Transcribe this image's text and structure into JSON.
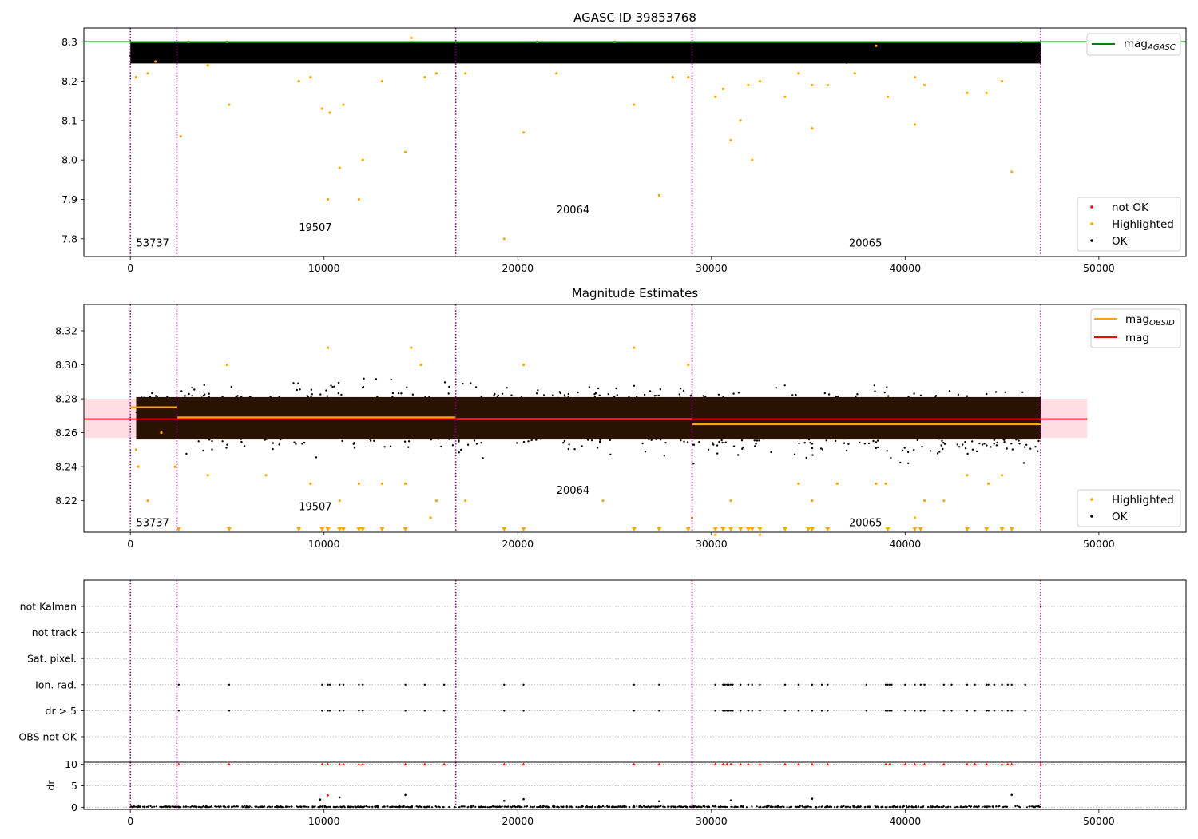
{
  "chart_data": [
    {
      "type": "scatter",
      "title": "AGASC ID 39853768",
      "xlim": [
        -2400,
        54500
      ],
      "ylim": [
        7.755,
        8.335
      ],
      "xticks": [
        0,
        10000,
        20000,
        30000,
        40000,
        50000
      ],
      "yticks": [
        7.8,
        7.9,
        8.0,
        8.1,
        8.2,
        8.3
      ],
      "ytick_labels": [
        "7.8",
        "7.9",
        "8.0",
        "8.1",
        "8.2",
        "8.3"
      ],
      "band": {
        "low": 8.245,
        "high": 8.298
      },
      "ok_trend": [
        {
          "x": 0,
          "y": 8.277
        },
        {
          "x": 2400,
          "y": 8.277
        },
        {
          "x": 2400,
          "y": 8.27
        },
        {
          "x": 16800,
          "y": 8.271
        },
        {
          "x": 16800,
          "y": 8.263
        },
        {
          "x": 29000,
          "y": 8.268
        },
        {
          "x": 29000,
          "y": 8.263
        },
        {
          "x": 47000,
          "y": 8.265
        }
      ],
      "mag_agasc": 8.3,
      "obsid_boundaries": [
        0,
        2400,
        16800,
        29000,
        47000
      ],
      "obsid_labels": [
        {
          "text": "53737",
          "x": 300,
          "y": 7.78
        },
        {
          "text": "19507",
          "x": 8700,
          "y": 7.82
        },
        {
          "text": "20064",
          "x": 22000,
          "y": 7.865
        },
        {
          "text": "20065",
          "x": 37100,
          "y": 7.78
        }
      ],
      "series": [
        {
          "name": "not OK",
          "color": "#ff0000",
          "points": []
        },
        {
          "name": "Highlighted",
          "color": "#ffa500",
          "points": [
            [
              300,
              8.21
            ],
            [
              900,
              8.22
            ],
            [
              1300,
              8.25
            ],
            [
              2600,
              8.06
            ],
            [
              3000,
              8.3
            ],
            [
              4000,
              8.24
            ],
            [
              5000,
              8.3
            ],
            [
              5100,
              8.14
            ],
            [
              8700,
              8.2
            ],
            [
              9300,
              8.21
            ],
            [
              9900,
              8.13
            ],
            [
              10200,
              7.9
            ],
            [
              10300,
              8.12
            ],
            [
              10800,
              7.98
            ],
            [
              11000,
              8.14
            ],
            [
              11800,
              7.9
            ],
            [
              12000,
              8.0
            ],
            [
              13000,
              8.2
            ],
            [
              14200,
              8.02
            ],
            [
              14500,
              8.31
            ],
            [
              15200,
              8.21
            ],
            [
              15800,
              8.22
            ],
            [
              17300,
              8.22
            ],
            [
              19300,
              7.8
            ],
            [
              20300,
              8.07
            ],
            [
              21000,
              8.3
            ],
            [
              22000,
              8.22
            ],
            [
              25000,
              8.3
            ],
            [
              26000,
              8.14
            ],
            [
              27300,
              7.91
            ],
            [
              28000,
              8.21
            ],
            [
              28800,
              8.21
            ],
            [
              30200,
              8.16
            ],
            [
              30600,
              8.18
            ],
            [
              31000,
              8.05
            ],
            [
              31500,
              8.1
            ],
            [
              31900,
              8.19
            ],
            [
              32100,
              8.0
            ],
            [
              32500,
              8.2
            ],
            [
              33800,
              8.16
            ],
            [
              34500,
              8.22
            ],
            [
              35200,
              8.08
            ],
            [
              35200,
              8.19
            ],
            [
              36000,
              8.19
            ],
            [
              37400,
              8.22
            ],
            [
              38500,
              8.29
            ],
            [
              39100,
              8.16
            ],
            [
              40500,
              8.09
            ],
            [
              40500,
              8.21
            ],
            [
              41000,
              8.19
            ],
            [
              43200,
              8.17
            ],
            [
              44200,
              8.17
            ],
            [
              45000,
              8.2
            ],
            [
              45500,
              7.97
            ],
            [
              46000,
              8.3
            ]
          ]
        },
        {
          "name": "OK",
          "color": "#000000",
          "points": []
        }
      ],
      "legend_lines": [
        {
          "name": "mag",
          "sub": "AGASC",
          "color": "#008000"
        }
      ],
      "legend_points": [
        {
          "name": "not OK",
          "color": "#ff0000"
        },
        {
          "name": "Highlighted",
          "color": "#ffa500"
        },
        {
          "name": "OK",
          "color": "#000000"
        }
      ]
    },
    {
      "type": "scatter",
      "title": "Magnitude Estimates",
      "xlim": [
        -2400,
        54500
      ],
      "ylim": [
        8.2015,
        8.3355
      ],
      "xticks": [
        0,
        10000,
        20000,
        30000,
        40000,
        50000
      ],
      "yticks": [
        8.22,
        8.24,
        8.26,
        8.28,
        8.3,
        8.32
      ],
      "ytick_labels": [
        "8.22",
        "8.24",
        "8.26",
        "8.28",
        "8.30",
        "8.32"
      ],
      "band": {
        "low": 8.236,
        "high": 8.3
      },
      "dense_band": {
        "low": 8.256,
        "high": 8.281
      },
      "mag": 8.268,
      "mag_err": [
        8.257,
        8.28
      ],
      "mag_err_x": [
        -2400,
        49400
      ],
      "mag_obsid": [
        {
          "x0": 0,
          "x1": 2400,
          "y": 8.275
        },
        {
          "x0": 2400,
          "x1": 16800,
          "y": 8.269
        },
        {
          "x0": 16800,
          "x1": 29000,
          "y": 8.268
        },
        {
          "x0": 29000,
          "x1": 47000,
          "y": 8.265
        }
      ],
      "obsid_boundaries": [
        0,
        2400,
        16800,
        29000,
        47000
      ],
      "obsid_labels": [
        {
          "text": "53737",
          "x": 300,
          "y": 8.205
        },
        {
          "text": "19507",
          "x": 8700,
          "y": 8.2145
        },
        {
          "text": "20064",
          "x": 22000,
          "y": 8.224
        },
        {
          "text": "20065",
          "x": 37100,
          "y": 8.205
        }
      ],
      "series": [
        {
          "name": "Highlighted",
          "color": "#ffa500",
          "points": [
            [
              300,
              8.25
            ],
            [
              400,
              8.24
            ],
            [
              900,
              8.22
            ],
            [
              1600,
              8.26
            ],
            [
              2300,
              8.24
            ],
            [
              4000,
              8.235
            ],
            [
              5000,
              8.3
            ],
            [
              7000,
              8.235
            ],
            [
              9300,
              8.23
            ],
            [
              10200,
              8.31
            ],
            [
              10800,
              8.22
            ],
            [
              11800,
              8.23
            ],
            [
              13000,
              8.23
            ],
            [
              14200,
              8.23
            ],
            [
              14500,
              8.31
            ],
            [
              15000,
              8.3
            ],
            [
              15500,
              8.21
            ],
            [
              15800,
              8.22
            ],
            [
              17300,
              8.22
            ],
            [
              20300,
              8.3
            ],
            [
              24400,
              8.22
            ],
            [
              26000,
              8.31
            ],
            [
              28800,
              8.3
            ],
            [
              29000,
              8.21
            ],
            [
              30200,
              8.2
            ],
            [
              31000,
              8.22
            ],
            [
              32500,
              8.2
            ],
            [
              34500,
              8.23
            ],
            [
              35200,
              8.22
            ],
            [
              36500,
              8.23
            ],
            [
              38500,
              8.23
            ],
            [
              39000,
              8.23
            ],
            [
              40500,
              8.21
            ],
            [
              41000,
              8.22
            ],
            [
              42000,
              8.22
            ],
            [
              43200,
              8.235
            ],
            [
              44300,
              8.23
            ],
            [
              45000,
              8.235
            ]
          ]
        },
        {
          "name": "OK",
          "color": "#000000",
          "points": []
        }
      ],
      "offscale_markers": [
        2500,
        5100,
        8700,
        9900,
        10200,
        10800,
        11000,
        11800,
        12000,
        13000,
        14200,
        19300,
        20300,
        26000,
        27300,
        28800,
        30200,
        30600,
        31000,
        31500,
        31900,
        32100,
        32500,
        33800,
        35000,
        35200,
        36000,
        39100,
        40500,
        40800,
        43200,
        44200,
        45000,
        45500
      ],
      "legend_lines": [
        {
          "name": "mag",
          "sub": "OBSID",
          "color": "#ffa500"
        },
        {
          "name": "mag",
          "sub": "",
          "color": "#ff0000"
        }
      ],
      "legend_points": [
        {
          "name": "Highlighted",
          "color": "#ffa500"
        },
        {
          "name": "OK",
          "color": "#000000"
        }
      ]
    },
    {
      "type": "scatter",
      "xlim": [
        -2400,
        54500
      ],
      "xticks": [
        0,
        10000,
        20000,
        30000,
        40000,
        50000
      ],
      "flag_rows": [
        "not Kalman",
        "not track",
        "Sat. pixel.",
        "Ion. rad.",
        "dr > 5",
        "OBS not OK"
      ],
      "obsid_boundaries": [
        0,
        2400,
        16800,
        29000,
        47000
      ],
      "flag_points": {
        "not Kalman": [
          2400,
          47000
        ],
        "not track": [],
        "Sat. pixel.": [],
        "Ion. rad.": [
          2500,
          5100,
          9900,
          10200,
          10300,
          10800,
          11000,
          11800,
          12000,
          14200,
          15200,
          16200,
          19300,
          20300,
          26000,
          27300,
          30200,
          30600,
          30700,
          30800,
          30900,
          31000,
          31100,
          31500,
          31900,
          32100,
          32500,
          33800,
          34500,
          35200,
          35700,
          36000,
          38000,
          39000,
          39100,
          39200,
          39300,
          40000,
          40500,
          40800,
          41000,
          42000,
          42400,
          43200,
          43600,
          44200,
          44300,
          44600,
          45000,
          45300,
          45500,
          46200
        ],
        "dr > 5": [
          2500,
          5100,
          9900,
          10200,
          10300,
          10800,
          11000,
          11800,
          12000,
          14200,
          15200,
          16200,
          19300,
          20300,
          26000,
          27300,
          30200,
          30600,
          30700,
          30800,
          30900,
          31000,
          31100,
          31500,
          31900,
          32100,
          32500,
          33800,
          34500,
          35200,
          35700,
          36000,
          38000,
          39000,
          39100,
          39200,
          39300,
          40000,
          40500,
          40800,
          41000,
          42000,
          42400,
          43200,
          43600,
          44200,
          44300,
          44600,
          45000,
          45300,
          45500,
          46200
        ],
        "OBS not OK": []
      }
    },
    {
      "type": "scatter",
      "ylabel": "dr",
      "xlim": [
        -2400,
        54500
      ],
      "ylim": [
        -0.5,
        10.5
      ],
      "xticks": [
        0,
        10000,
        20000,
        30000,
        40000,
        50000
      ],
      "yticks": [
        0,
        5,
        10
      ],
      "obsid_boundaries": [
        0,
        2400,
        16800,
        29000,
        47000
      ],
      "dr_capped": [
        2500,
        5100,
        9900,
        10200,
        10800,
        11000,
        11800,
        12000,
        14200,
        15200,
        16200,
        19300,
        20300,
        26000,
        27300,
        30200,
        30600,
        30800,
        31000,
        31500,
        31900,
        32500,
        33800,
        34500,
        35200,
        36000,
        39000,
        39200,
        40000,
        40500,
        41000,
        42000,
        43200,
        43600,
        44200,
        45000,
        45300,
        45500,
        47000
      ],
      "dr_outliers": [
        {
          "x": 10200,
          "y": 2.8,
          "color": "#ff0000"
        },
        {
          "x": 9800,
          "y": 1.8,
          "color": "#000000"
        },
        {
          "x": 10800,
          "y": 2.3,
          "color": "#000000"
        },
        {
          "x": 14200,
          "y": 2.9,
          "color": "#000000"
        },
        {
          "x": 19300,
          "y": 1.5,
          "color": "#000000"
        },
        {
          "x": 20300,
          "y": 1.9,
          "color": "#000000"
        },
        {
          "x": 27300,
          "y": 1.4,
          "color": "#000000"
        },
        {
          "x": 31000,
          "y": 1.6,
          "color": "#000000"
        },
        {
          "x": 35200,
          "y": 2.0,
          "color": "#000000"
        },
        {
          "x": 45500,
          "y": 2.9,
          "color": "#000000"
        }
      ]
    }
  ]
}
